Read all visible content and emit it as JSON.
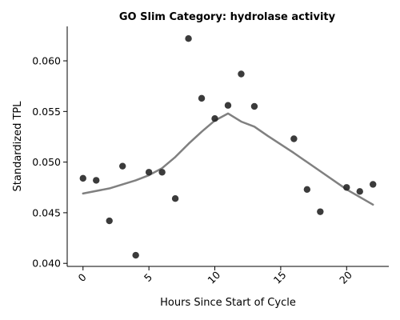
{
  "chart_data": {
    "type": "scatter",
    "title": "GO Slim Category: hydrolase activity",
    "xlabel": "Hours Since Start of Cycle",
    "ylabel": "Standardized TPL",
    "xlim": [
      -1.2,
      23.2
    ],
    "ylim": [
      0.0397,
      0.0634
    ],
    "x_ticks": [
      0,
      5,
      10,
      15,
      20
    ],
    "y_ticks": [
      0.04,
      0.045,
      0.05,
      0.055,
      0.06
    ],
    "y_tick_labels": [
      "0.040",
      "0.045",
      "0.050",
      "0.055",
      "0.060"
    ],
    "x_tick_labels": [
      "0",
      "5",
      "10",
      "15",
      "20"
    ],
    "grid": false,
    "series": [
      {
        "kind": "points",
        "color": "#262626",
        "x": [
          0,
          1,
          2,
          3,
          4,
          5,
          6,
          7,
          8,
          9,
          10,
          11,
          12,
          13,
          16,
          17,
          18,
          20,
          21,
          22
        ],
        "y": [
          0.0484,
          0.0482,
          0.0442,
          0.0496,
          0.0408,
          0.049,
          0.049,
          0.0464,
          0.0622,
          0.0563,
          0.0543,
          0.0556,
          0.0587,
          0.0555,
          0.0523,
          0.0473,
          0.0451,
          0.0475,
          0.0471,
          0.0478
        ]
      },
      {
        "kind": "line",
        "color": "#808080",
        "x": [
          0,
          2,
          4,
          5,
          6,
          7,
          8,
          9,
          10,
          11,
          12,
          13,
          14,
          16,
          18,
          20,
          22
        ],
        "y": [
          0.0469,
          0.0474,
          0.0482,
          0.0487,
          0.0494,
          0.0505,
          0.0518,
          0.053,
          0.0541,
          0.0548,
          0.054,
          0.0535,
          0.0526,
          0.0509,
          0.0491,
          0.0473,
          0.0458
        ]
      }
    ]
  }
}
